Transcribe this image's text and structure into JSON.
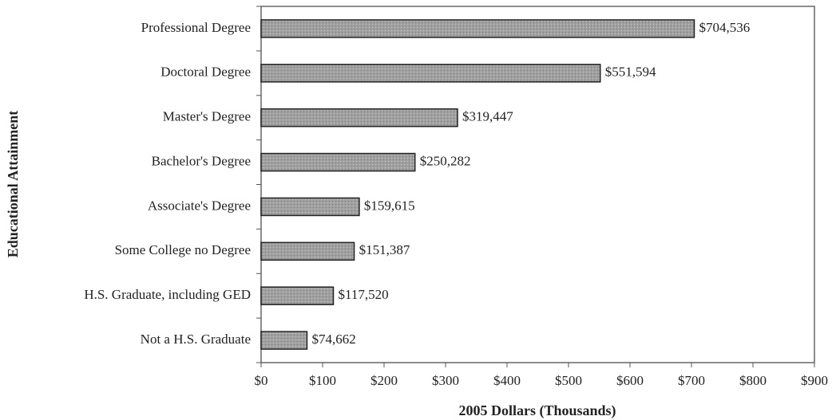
{
  "chart_data": {
    "type": "hbar",
    "xlabel": "2005 Dollars (Thousands)",
    "ylabel": "Educational Attainment",
    "categories": [
      "Professional Degree",
      "Doctoral Degree",
      "Master's Degree",
      "Bachelor's Degree",
      "Associate's Degree",
      "Some College no Degree",
      "H.S. Graduate, including GED",
      "Not a H.S. Graduate"
    ],
    "values": [
      704.536,
      551.594,
      319.447,
      250.282,
      159.615,
      151.387,
      117.52,
      74.662
    ],
    "value_labels": [
      "$704,536",
      "$551,594",
      "$319,447",
      "$250,282",
      "$159,615",
      "$151,387",
      "$117,520",
      "$74,662"
    ],
    "color": "#a0a0a0",
    "xlim": [
      0,
      900
    ],
    "xticks": [
      {
        "value": 0,
        "label": "$0"
      },
      {
        "value": 100,
        "label": "$100"
      },
      {
        "value": 200,
        "label": "$200"
      },
      {
        "value": 300,
        "label": "$300"
      },
      {
        "value": 400,
        "label": "$400"
      },
      {
        "value": 500,
        "label": "$500"
      },
      {
        "value": 600,
        "label": "$600"
      },
      {
        "value": 700,
        "label": "$700"
      },
      {
        "value": 800,
        "label": "$800"
      },
      {
        "value": 900,
        "label": "$900"
      }
    ],
    "grid": false
  }
}
